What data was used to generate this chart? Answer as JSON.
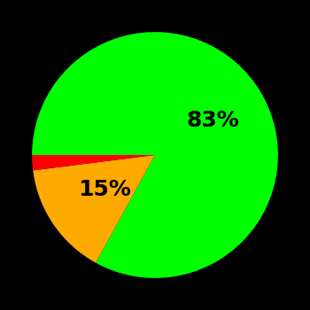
{
  "slices": [
    83,
    15,
    2
  ],
  "colors": [
    "#00ff00",
    "#ffaa00",
    "#ff0000"
  ],
  "labels": [
    "83%",
    "15%",
    ""
  ],
  "background_color": "#000000",
  "startangle": 180,
  "counterclock": false,
  "label_fontsize": 18,
  "label_fontweight": "bold",
  "label_radii": [
    0.55,
    0.5,
    0
  ]
}
